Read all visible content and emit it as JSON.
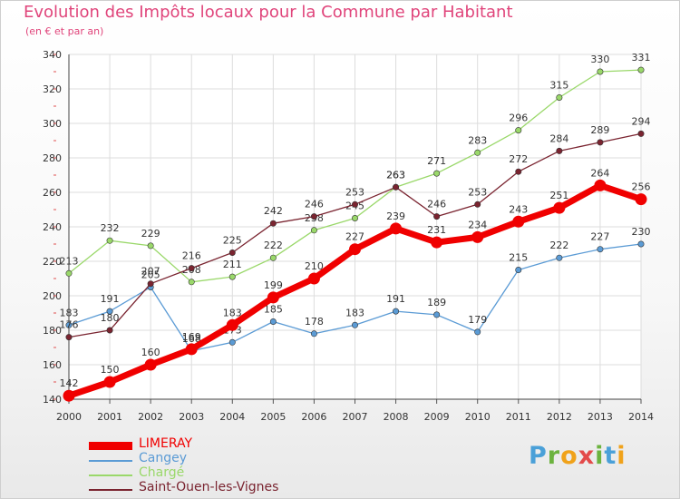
{
  "title": "Evolution des Impôts locaux pour la Commune par Habitant",
  "subtitle": "(en € et par an)",
  "brand": {
    "text": "Proxiti",
    "colors": [
      "#4aa0d8",
      "#6cb33f",
      "#f0a21a",
      "#e34a4a",
      "#6cb33f",
      "#4aa0d8",
      "#f0a21a"
    ]
  },
  "chart_data": {
    "type": "line",
    "x": [
      2000,
      2001,
      2002,
      2003,
      2004,
      2005,
      2006,
      2007,
      2008,
      2009,
      2010,
      2011,
      2012,
      2013,
      2014
    ],
    "ylim": [
      140,
      340
    ],
    "yticks": [
      140,
      160,
      180,
      200,
      220,
      240,
      260,
      280,
      300,
      320,
      340
    ],
    "grid": true,
    "legend": "bottom-left",
    "series": [
      {
        "name": "Cangey",
        "color": "#5b9bd5",
        "values": [
          183,
          191,
          205,
          168,
          173,
          185,
          178,
          183,
          191,
          189,
          179,
          215,
          222,
          227,
          230
        ]
      },
      {
        "name": "Chargé",
        "color": "#9ad86a",
        "values": [
          213,
          232,
          229,
          208,
          211,
          222,
          238,
          245,
          263,
          271,
          283,
          296,
          315,
          330,
          331
        ]
      },
      {
        "name": "Saint-Ouen-les-Vignes",
        "color": "#7a2430",
        "values": [
          176,
          180,
          207,
          216,
          225,
          242,
          246,
          253,
          263,
          246,
          253,
          272,
          284,
          289,
          294
        ]
      },
      {
        "name": "LIMERAY",
        "color": "#f00000",
        "values": [
          142,
          150,
          160,
          169,
          183,
          199,
          210,
          227,
          239,
          231,
          234,
          243,
          251,
          264,
          256
        ]
      }
    ],
    "legend_order": [
      "LIMERAY",
      "Cangey",
      "Chargé",
      "Saint-Ouen-les-Vignes"
    ]
  }
}
